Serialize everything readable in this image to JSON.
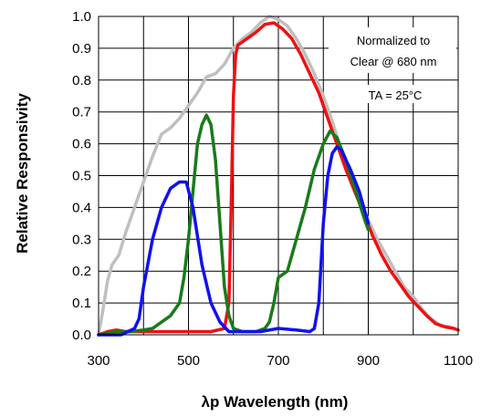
{
  "chart_data": {
    "type": "line",
    "xlabel": "λp Wavelength (nm)",
    "ylabel": "Relative Responsivity",
    "xlim": [
      300,
      1100
    ],
    "ylim": [
      0,
      1.0
    ],
    "grid": true,
    "xticks": [
      "300",
      "500",
      "700",
      "900",
      "1100"
    ],
    "yticks": [
      "0.0",
      "0.1",
      "0.2",
      "0.3",
      "0.4",
      "0.5",
      "0.6",
      "0.7",
      "0.8",
      "0.9",
      "1.0"
    ],
    "annotations": [
      "Normalized to",
      "Clear @ 680 nm",
      "TA = 25°C"
    ],
    "series": [
      {
        "color": "#bfbfbf",
        "points": [
          [
            300,
            0
          ],
          [
            310,
            0.08
          ],
          [
            320,
            0.17
          ],
          [
            330,
            0.22
          ],
          [
            345,
            0.25
          ],
          [
            360,
            0.32
          ],
          [
            380,
            0.4
          ],
          [
            400,
            0.48
          ],
          [
            420,
            0.56
          ],
          [
            440,
            0.63
          ],
          [
            460,
            0.65
          ],
          [
            480,
            0.68
          ],
          [
            500,
            0.72
          ],
          [
            520,
            0.76
          ],
          [
            540,
            0.81
          ],
          [
            560,
            0.82
          ],
          [
            580,
            0.85
          ],
          [
            600,
            0.9
          ],
          [
            620,
            0.93
          ],
          [
            640,
            0.95
          ],
          [
            660,
            0.98
          ],
          [
            680,
            1.0
          ],
          [
            700,
            0.99
          ],
          [
            720,
            0.97
          ],
          [
            740,
            0.93
          ],
          [
            760,
            0.88
          ],
          [
            780,
            0.82
          ],
          [
            800,
            0.75
          ],
          [
            820,
            0.67
          ],
          [
            840,
            0.58
          ],
          [
            860,
            0.5
          ],
          [
            880,
            0.43
          ],
          [
            900,
            0.36
          ],
          [
            920,
            0.3
          ],
          [
            940,
            0.25
          ],
          [
            960,
            0.2
          ],
          [
            980,
            0.15
          ],
          [
            1000,
            0.12
          ],
          [
            1020,
            0.08
          ],
          [
            1040,
            0.05
          ],
          [
            1060,
            0.03
          ],
          [
            1080,
            0.025
          ],
          [
            1100,
            0.015
          ]
        ]
      },
      {
        "color": "#ee1111",
        "points": [
          [
            300,
            0
          ],
          [
            320,
            0.01
          ],
          [
            340,
            0.015
          ],
          [
            360,
            0.01
          ],
          [
            400,
            0.01
          ],
          [
            450,
            0.01
          ],
          [
            500,
            0.01
          ],
          [
            550,
            0.01
          ],
          [
            580,
            0.02
          ],
          [
            590,
            0.1
          ],
          [
            595,
            0.4
          ],
          [
            600,
            0.75
          ],
          [
            605,
            0.88
          ],
          [
            610,
            0.91
          ],
          [
            630,
            0.93
          ],
          [
            650,
            0.95
          ],
          [
            670,
            0.975
          ],
          [
            690,
            0.98
          ],
          [
            710,
            0.96
          ],
          [
            730,
            0.93
          ],
          [
            750,
            0.88
          ],
          [
            770,
            0.82
          ],
          [
            790,
            0.76
          ],
          [
            810,
            0.68
          ],
          [
            830,
            0.6
          ],
          [
            850,
            0.52
          ],
          [
            870,
            0.45
          ],
          [
            890,
            0.38
          ],
          [
            910,
            0.31
          ],
          [
            930,
            0.25
          ],
          [
            950,
            0.2
          ],
          [
            970,
            0.16
          ],
          [
            990,
            0.12
          ],
          [
            1010,
            0.09
          ],
          [
            1030,
            0.06
          ],
          [
            1050,
            0.035
          ],
          [
            1070,
            0.025
          ],
          [
            1090,
            0.02
          ],
          [
            1100,
            0.015
          ]
        ]
      },
      {
        "color": "#1a7a1a",
        "points": [
          [
            300,
            0
          ],
          [
            340,
            0.01
          ],
          [
            370,
            0.01
          ],
          [
            400,
            0.015
          ],
          [
            420,
            0.02
          ],
          [
            440,
            0.04
          ],
          [
            460,
            0.06
          ],
          [
            480,
            0.1
          ],
          [
            490,
            0.18
          ],
          [
            500,
            0.3
          ],
          [
            510,
            0.45
          ],
          [
            520,
            0.6
          ],
          [
            530,
            0.66
          ],
          [
            540,
            0.69
          ],
          [
            550,
            0.66
          ],
          [
            560,
            0.55
          ],
          [
            570,
            0.35
          ],
          [
            580,
            0.15
          ],
          [
            590,
            0.06
          ],
          [
            600,
            0.02
          ],
          [
            620,
            0.01
          ],
          [
            650,
            0.01
          ],
          [
            670,
            0.02
          ],
          [
            680,
            0.04
          ],
          [
            690,
            0.1
          ],
          [
            700,
            0.18
          ],
          [
            710,
            0.19
          ],
          [
            720,
            0.2
          ],
          [
            740,
            0.3
          ],
          [
            760,
            0.4
          ],
          [
            780,
            0.52
          ],
          [
            800,
            0.6
          ],
          [
            815,
            0.64
          ],
          [
            830,
            0.62
          ],
          [
            850,
            0.55
          ],
          [
            870,
            0.46
          ],
          [
            890,
            0.37
          ],
          [
            900,
            0.33
          ]
        ]
      },
      {
        "color": "#1111ee",
        "points": [
          [
            300,
            0
          ],
          [
            350,
            0
          ],
          [
            380,
            0.02
          ],
          [
            390,
            0.05
          ],
          [
            400,
            0.15
          ],
          [
            420,
            0.3
          ],
          [
            440,
            0.4
          ],
          [
            460,
            0.46
          ],
          [
            480,
            0.48
          ],
          [
            495,
            0.48
          ],
          [
            510,
            0.4
          ],
          [
            530,
            0.22
          ],
          [
            550,
            0.1
          ],
          [
            570,
            0.04
          ],
          [
            590,
            0.01
          ],
          [
            620,
            0.01
          ],
          [
            660,
            0.01
          ],
          [
            700,
            0.02
          ],
          [
            740,
            0.015
          ],
          [
            770,
            0.01
          ],
          [
            780,
            0.02
          ],
          [
            790,
            0.1
          ],
          [
            800,
            0.35
          ],
          [
            810,
            0.5
          ],
          [
            820,
            0.57
          ],
          [
            830,
            0.59
          ],
          [
            840,
            0.58
          ],
          [
            860,
            0.52
          ],
          [
            880,
            0.45
          ],
          [
            900,
            0.35
          ]
        ]
      }
    ]
  }
}
